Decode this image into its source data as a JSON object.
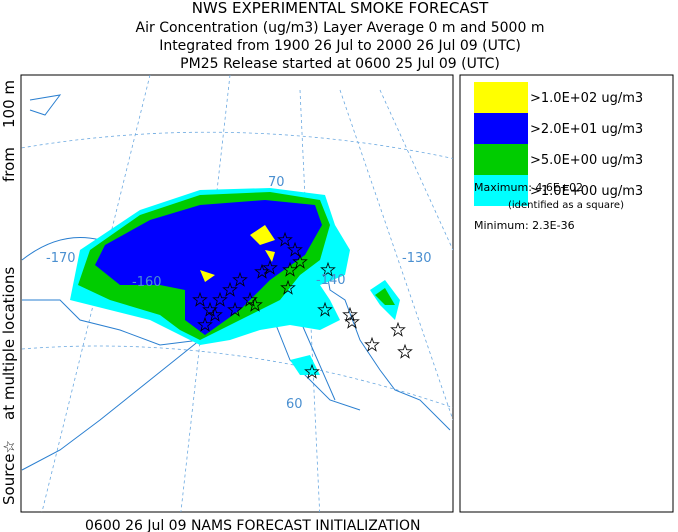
{
  "header": {
    "title": "NWS EXPERIMENTAL SMOKE FORECAST",
    "lines": [
      "Air Concentration (ug/m3) Layer Average    0 m and  5000 m",
      "Integrated from 1900 26 Jul to 2000 26 Jul 09 (UTC)",
      "PM25 Release started at 0600 25 Jul 09 (UTC)"
    ]
  },
  "side_label": {
    "parts": [
      "Source☆",
      "at multiple locations",
      "from",
      "100 m"
    ]
  },
  "map": {
    "graticule_labels": [
      "-170",
      "-160",
      "-140",
      "-130",
      "70",
      "60"
    ]
  },
  "legend": {
    "entries": [
      {
        "label": ">1.0E+02 ug/m3",
        "color": "#ffff00"
      },
      {
        "label": ">2.0E+01 ug/m3",
        "color": "#0000ff"
      },
      {
        "label": ">5.0E+00 ug/m3",
        "color": "#00cc00"
      },
      {
        "label": ">1.0E+00 ug/m3",
        "color": "#00ffff"
      }
    ],
    "maximum": "Maximum: 4.6E+02",
    "maximum_note": "(identified as a square)",
    "minimum": "Minimum: 2.3E-36"
  },
  "footer": {
    "text": "0600 26 Jul 09 NAMS FORECAST INITIALIZATION"
  }
}
